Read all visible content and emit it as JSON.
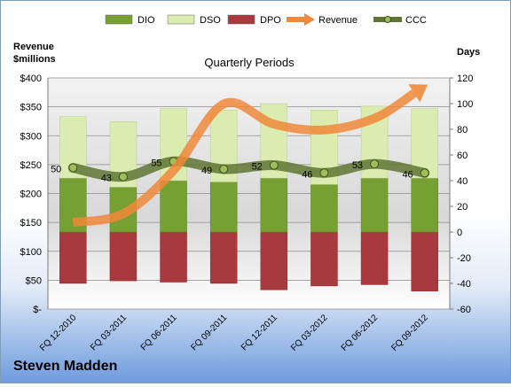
{
  "company": "Steven Madden",
  "chart_data": {
    "type": "bar",
    "title": "Quarterly Periods",
    "left_axis_title": [
      "Revenue",
      "$millions"
    ],
    "right_axis_title": "Days",
    "categories": [
      "FQ 12-2010",
      "FQ 03-2011",
      "FQ 06-2011",
      "FQ 09-2011",
      "FQ 12-2011",
      "FQ 03-2012",
      "FQ 06-2012",
      "FQ 09-2012"
    ],
    "left_ticks": [
      "$400",
      "$350",
      "$300",
      "$250",
      "$200",
      "$150",
      "$100",
      "$50",
      "$-"
    ],
    "right_ticks": [
      "120",
      "100",
      "80",
      "60",
      "40",
      "20",
      "0",
      "-20",
      "-40",
      "-60"
    ],
    "left_ylim": [
      0,
      400
    ],
    "right_ylim": [
      -60,
      120
    ],
    "stacked": true,
    "grid": true,
    "legend_position": "top",
    "series": [
      {
        "name": "DIO",
        "type": "bar",
        "axis": "right",
        "color": "#77a033",
        "values": [
          42,
          35,
          40,
          39,
          42,
          37,
          42,
          42
        ]
      },
      {
        "name": "DSO",
        "type": "bar",
        "axis": "right",
        "color": "#dbecb0",
        "values": [
          48,
          51,
          56,
          56,
          58,
          58,
          56,
          54
        ]
      },
      {
        "name": "DPO",
        "type": "bar",
        "axis": "right",
        "color": "#a83a3f",
        "values": [
          -40,
          -38,
          -39,
          -40,
          -45,
          -42,
          -41,
          -46
        ]
      },
      {
        "name": "Revenue",
        "type": "line",
        "axis": "left",
        "color": "#f0883a",
        "values": [
          150,
          165,
          240,
          355,
          320,
          310,
          330,
          385
        ]
      },
      {
        "name": "CCC",
        "type": "line",
        "axis": "right",
        "color": "#5e7634",
        "values": [
          50,
          43,
          55,
          49,
          52,
          46,
          53,
          46
        ]
      }
    ],
    "ccc_labels": [
      "50",
      "43",
      "55",
      "49",
      "52",
      "46",
      "53",
      "46"
    ]
  }
}
